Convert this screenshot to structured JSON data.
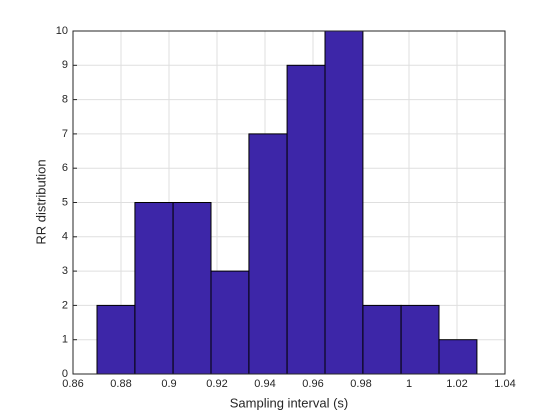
{
  "chart_data": {
    "type": "histogram",
    "xlabel": "Sampling interval (s)",
    "ylabel": "RR distribution",
    "bins": [
      0.87,
      0.8858,
      0.9017,
      0.9175,
      0.9333,
      0.9492,
      0.965,
      0.9808,
      0.9967,
      1.0125,
      1.0283
    ],
    "values": [
      2,
      5,
      5,
      3,
      7,
      9,
      10,
      2,
      2,
      1
    ],
    "color": "#3d26a8",
    "xlim": [
      0.86,
      1.04
    ],
    "xticks": [
      0.86,
      0.88,
      0.9,
      0.92,
      0.94,
      0.96,
      0.98,
      1,
      1.02,
      1.04
    ],
    "ylim": [
      0,
      10
    ],
    "yticks": [
      0,
      1,
      2,
      3,
      4,
      5,
      6,
      7,
      8,
      9,
      10
    ],
    "grid": true
  }
}
